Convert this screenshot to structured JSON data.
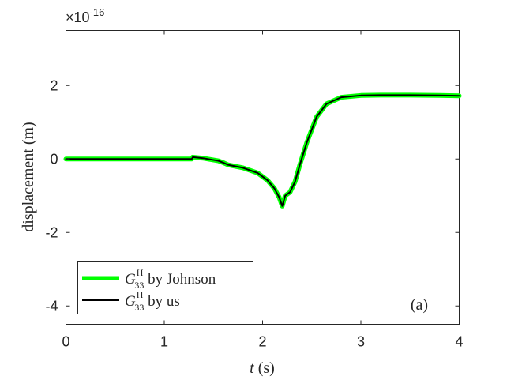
{
  "chart_data": {
    "type": "line",
    "xlabel_var": "t",
    "xlabel_unit": " (s)",
    "ylabel": "displacement (m)",
    "y_exponent_prefix": "×10",
    "y_exponent_power": "-16",
    "xlim": [
      0,
      4
    ],
    "ylim": [
      -4.5,
      3.5
    ],
    "x_ticks": [
      0,
      1,
      2,
      3,
      4
    ],
    "x_tick_labels": [
      "0",
      "1",
      "2",
      "3",
      "4"
    ],
    "y_ticks": [
      -4,
      -2,
      0,
      2
    ],
    "y_tick_labels": [
      "-4",
      "-2",
      "0",
      "2"
    ],
    "grid": false,
    "legend_position": "bottom-left",
    "panel_label": "(a)",
    "series": [
      {
        "name": "G33H by Johnson",
        "legend_base": "G",
        "legend_sub": "33",
        "legend_sup": "H",
        "legend_text": " by Johnson",
        "color": "#00ff00",
        "x": [
          0,
          0.5,
          1.0,
          1.28,
          1.29,
          1.4,
          1.55,
          1.6,
          1.65,
          1.8,
          1.95,
          2.05,
          2.12,
          2.17,
          2.2,
          2.23,
          2.28,
          2.33,
          2.38,
          2.45,
          2.55,
          2.65,
          2.8,
          3.0,
          3.2,
          3.5,
          3.8,
          4.0
        ],
        "y": [
          0,
          0,
          0,
          0,
          0.05,
          0.02,
          -0.05,
          -0.1,
          -0.16,
          -0.24,
          -0.38,
          -0.58,
          -0.8,
          -1.05,
          -1.28,
          -1.0,
          -0.9,
          -0.62,
          -0.15,
          0.45,
          1.15,
          1.5,
          1.68,
          1.73,
          1.74,
          1.74,
          1.73,
          1.72
        ]
      },
      {
        "name": "G33H by us",
        "legend_base": "G",
        "legend_sub": "33",
        "legend_sup": "H",
        "legend_text": " by us",
        "color": "#000000",
        "x": [
          0,
          0.5,
          1.0,
          1.28,
          1.29,
          1.4,
          1.55,
          1.6,
          1.65,
          1.8,
          1.95,
          2.05,
          2.12,
          2.17,
          2.2,
          2.23,
          2.28,
          2.33,
          2.38,
          2.45,
          2.55,
          2.65,
          2.8,
          3.0,
          3.2,
          3.5,
          3.8,
          4.0
        ],
        "y": [
          0,
          0,
          0,
          0,
          0.05,
          0.02,
          -0.05,
          -0.1,
          -0.16,
          -0.24,
          -0.38,
          -0.58,
          -0.8,
          -1.05,
          -1.28,
          -1.0,
          -0.9,
          -0.62,
          -0.15,
          0.45,
          1.15,
          1.5,
          1.68,
          1.73,
          1.74,
          1.74,
          1.73,
          1.72
        ]
      }
    ]
  }
}
